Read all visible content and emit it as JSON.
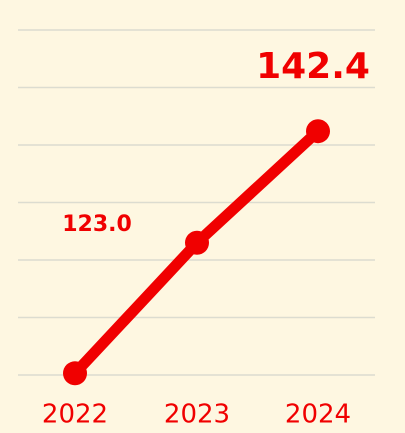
{
  "chart_data": {
    "type": "line",
    "categories": [
      "2022",
      "2023",
      "2024"
    ],
    "values": [
      100.3,
      123.0,
      142.4
    ],
    "value_labels": [
      null,
      "123.0",
      "142.4"
    ],
    "color": "#f00000",
    "ylim": [
      100,
      160
    ],
    "yticks": [
      100,
      110,
      120,
      130,
      140,
      150,
      160
    ],
    "grid": true
  }
}
